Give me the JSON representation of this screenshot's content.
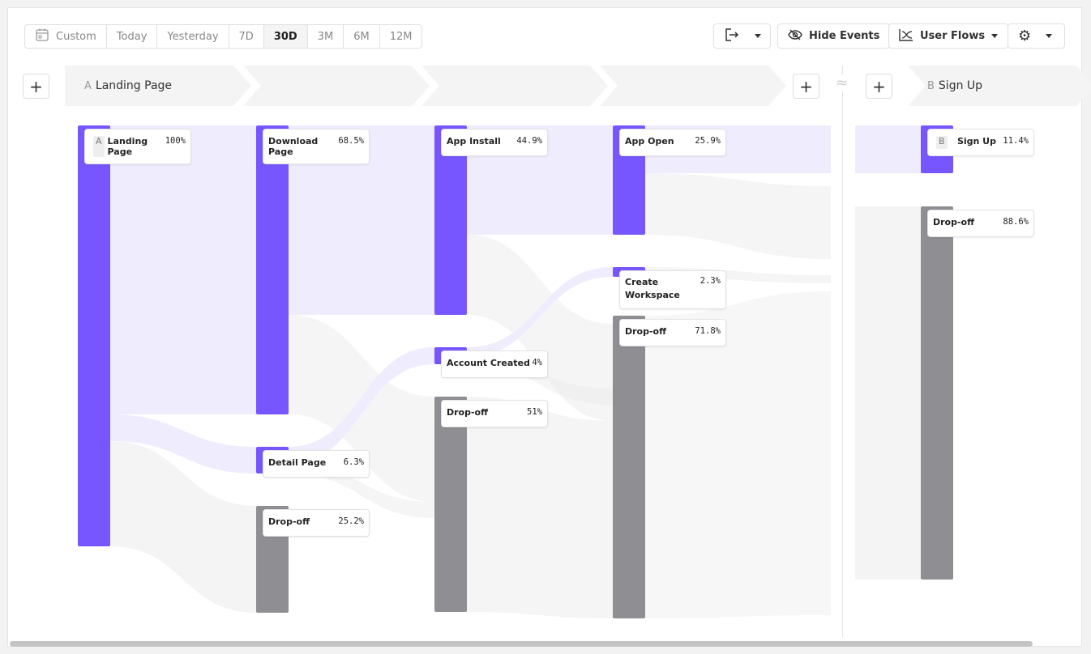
{
  "toolbar": {
    "date_ranges": [
      "Custom",
      "Today",
      "Yesterday",
      "7D",
      "30D",
      "3M",
      "6M",
      "12M"
    ],
    "active_range": "30D",
    "export_icon": "export-icon",
    "hide_events": "Hide Events",
    "chart_type": "User Flows",
    "settings_icon": "gear-icon"
  },
  "steps": {
    "a": {
      "letter": "A",
      "name": "Landing Page"
    },
    "b": {
      "letter": "B",
      "name": "Sign Up"
    },
    "separator": "≈"
  },
  "colors": {
    "event": "#7856ff",
    "dropoff": "#8e8e93",
    "flow": "#efedfd"
  },
  "chart_data": {
    "type": "sankey",
    "columns": [
      [
        {
          "name": "Landing Page",
          "letter": "A",
          "pct": "100%",
          "kind": "event"
        }
      ],
      [
        {
          "name": "Download Page",
          "pct": "68.5%",
          "kind": "event"
        },
        {
          "name": "Detail Page",
          "pct": "6.3%",
          "kind": "event"
        },
        {
          "name": "Drop-off",
          "pct": "25.2%",
          "kind": "dropoff"
        }
      ],
      [
        {
          "name": "App Install",
          "pct": "44.9%",
          "kind": "event"
        },
        {
          "name": "Account Created",
          "pct": "4%",
          "kind": "event"
        },
        {
          "name": "Drop-off",
          "pct": "51%",
          "kind": "dropoff"
        }
      ],
      [
        {
          "name": "App Open",
          "pct": "25.9%",
          "kind": "event"
        },
        {
          "name": "Create Workspace",
          "pct": "2.3%",
          "kind": "event"
        },
        {
          "name": "Drop-off",
          "pct": "71.8%",
          "kind": "dropoff"
        }
      ],
      [
        {
          "name": "Sign Up",
          "letter": "B",
          "pct": "11.4%",
          "kind": "event"
        },
        {
          "name": "Drop-off",
          "pct": "88.6%",
          "kind": "dropoff"
        }
      ]
    ]
  }
}
